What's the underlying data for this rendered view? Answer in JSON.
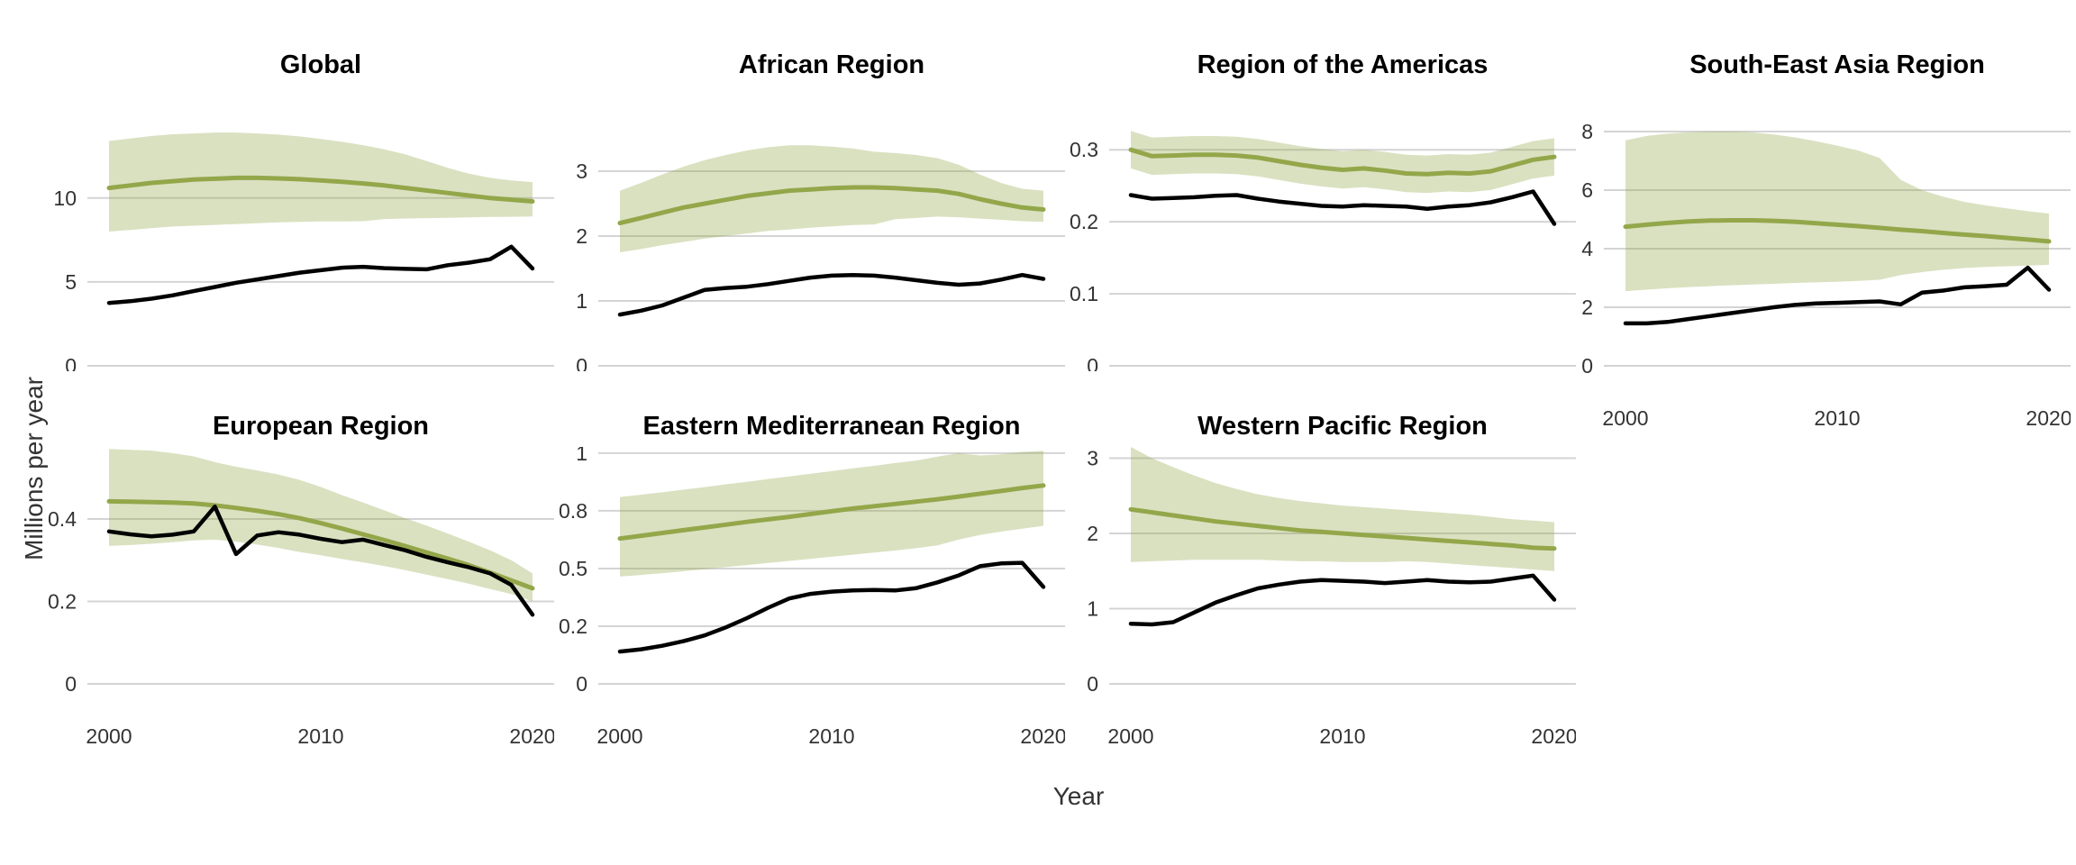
{
  "chart_data": {
    "type": "line",
    "title": "",
    "xlabel": "Year",
    "ylabel": "Millions per year",
    "layout": "7 faceted panels, 4 columns x 2 rows, shared x axis, free y scales, horizontal gridlines only, no legend",
    "x": [
      2000,
      2001,
      2002,
      2003,
      2004,
      2005,
      2006,
      2007,
      2008,
      2009,
      2010,
      2011,
      2012,
      2013,
      2014,
      2015,
      2016,
      2017,
      2018,
      2019,
      2020
    ],
    "x_range": [
      1999,
      2021
    ],
    "x_ticks": [
      {
        "value": 2000,
        "label": "2000"
      },
      {
        "value": 2010,
        "label": "2010"
      },
      {
        "value": 2020,
        "label": "2020"
      }
    ],
    "series_meaning": {
      "estimate": "green line with shaded uncertainty ribbon (upper/lower bounds)",
      "reported": "black line"
    },
    "panels": [
      {
        "title": "Global",
        "y_max": 16.7,
        "y_ticks": [
          {
            "value": 0,
            "label": "0"
          },
          {
            "value": 5,
            "label": "5"
          },
          {
            "value": 10,
            "label": "10"
          }
        ],
        "series": {
          "estimate": [
            10.6,
            10.75,
            10.9,
            11.0,
            11.1,
            11.15,
            11.2,
            11.2,
            11.17,
            11.12,
            11.05,
            10.97,
            10.87,
            10.75,
            10.6,
            10.45,
            10.3,
            10.15,
            10.0,
            9.9,
            9.8
          ],
          "upper": [
            13.4,
            13.55,
            13.7,
            13.8,
            13.85,
            13.9,
            13.9,
            13.85,
            13.78,
            13.67,
            13.52,
            13.35,
            13.15,
            12.9,
            12.6,
            12.2,
            11.8,
            11.45,
            11.2,
            11.05,
            10.95
          ],
          "lower": [
            8.0,
            8.1,
            8.2,
            8.3,
            8.35,
            8.4,
            8.45,
            8.5,
            8.55,
            8.58,
            8.6,
            8.6,
            8.62,
            8.75,
            8.78,
            8.8,
            8.82,
            8.85,
            8.87,
            8.88,
            8.9
          ],
          "reported": [
            3.75,
            3.85,
            4.0,
            4.2,
            4.45,
            4.7,
            4.95,
            5.15,
            5.35,
            5.55,
            5.7,
            5.85,
            5.9,
            5.82,
            5.78,
            5.75,
            6.0,
            6.15,
            6.35,
            7.1,
            5.8
          ]
        }
      },
      {
        "title": "African Region",
        "y_max": 4.32,
        "y_ticks": [
          {
            "value": 0,
            "label": "0"
          },
          {
            "value": 1,
            "label": "1"
          },
          {
            "value": 2,
            "label": "2"
          },
          {
            "value": 3,
            "label": "3"
          }
        ],
        "series": {
          "estimate": [
            2.2,
            2.28,
            2.36,
            2.44,
            2.5,
            2.56,
            2.62,
            2.66,
            2.7,
            2.72,
            2.74,
            2.75,
            2.75,
            2.74,
            2.72,
            2.7,
            2.65,
            2.57,
            2.5,
            2.44,
            2.41
          ],
          "upper": [
            2.7,
            2.82,
            2.95,
            3.07,
            3.17,
            3.25,
            3.32,
            3.37,
            3.4,
            3.4,
            3.38,
            3.35,
            3.3,
            3.28,
            3.25,
            3.2,
            3.1,
            2.95,
            2.82,
            2.73,
            2.7
          ],
          "lower": [
            1.75,
            1.8,
            1.86,
            1.91,
            1.96,
            2.0,
            2.04,
            2.08,
            2.1,
            2.13,
            2.15,
            2.17,
            2.18,
            2.26,
            2.28,
            2.3,
            2.29,
            2.27,
            2.25,
            2.23,
            2.22
          ],
          "reported": [
            0.79,
            0.85,
            0.93,
            1.05,
            1.17,
            1.2,
            1.22,
            1.26,
            1.31,
            1.36,
            1.39,
            1.4,
            1.39,
            1.36,
            1.32,
            1.28,
            1.25,
            1.27,
            1.33,
            1.4,
            1.34
          ]
        }
      },
      {
        "title": "Region of the Americas",
        "y_max": 0.389,
        "y_ticks": [
          {
            "value": 0,
            "label": "0"
          },
          {
            "value": 0.1,
            "label": "0.1"
          },
          {
            "value": 0.2,
            "label": "0.2"
          },
          {
            "value": 0.3,
            "label": "0.3"
          }
        ],
        "series": {
          "estimate": [
            0.3,
            0.291,
            0.292,
            0.293,
            0.293,
            0.292,
            0.289,
            0.284,
            0.279,
            0.275,
            0.272,
            0.274,
            0.271,
            0.267,
            0.266,
            0.268,
            0.267,
            0.27,
            0.278,
            0.286,
            0.29
          ],
          "upper": [
            0.326,
            0.317,
            0.318,
            0.319,
            0.319,
            0.318,
            0.315,
            0.31,
            0.305,
            0.301,
            0.298,
            0.3,
            0.297,
            0.293,
            0.292,
            0.294,
            0.293,
            0.296,
            0.304,
            0.312,
            0.316
          ],
          "lower": [
            0.274,
            0.265,
            0.266,
            0.267,
            0.267,
            0.266,
            0.263,
            0.258,
            0.253,
            0.249,
            0.246,
            0.248,
            0.245,
            0.241,
            0.24,
            0.242,
            0.241,
            0.244,
            0.252,
            0.26,
            0.264
          ],
          "reported": [
            0.237,
            0.232,
            0.233,
            0.234,
            0.236,
            0.237,
            0.232,
            0.228,
            0.225,
            0.222,
            0.221,
            0.223,
            0.222,
            0.221,
            0.218,
            0.221,
            0.223,
            0.227,
            0.234,
            0.242,
            0.197
          ]
        }
      },
      {
        "title": "South-East Asia Region",
        "y_max": 9.57,
        "y_ticks": [
          {
            "value": 0,
            "label": "0"
          },
          {
            "value": 2,
            "label": "2"
          },
          {
            "value": 4,
            "label": "4"
          },
          {
            "value": 6,
            "label": "6"
          },
          {
            "value": 8,
            "label": "8"
          }
        ],
        "series": {
          "estimate": [
            4.75,
            4.82,
            4.88,
            4.93,
            4.96,
            4.97,
            4.97,
            4.95,
            4.92,
            4.87,
            4.82,
            4.77,
            4.71,
            4.65,
            4.6,
            4.54,
            4.48,
            4.43,
            4.37,
            4.31,
            4.25
          ],
          "upper": [
            7.7,
            7.85,
            7.93,
            7.98,
            8.0,
            8.0,
            7.97,
            7.9,
            7.8,
            7.67,
            7.52,
            7.35,
            7.1,
            6.35,
            6.0,
            5.78,
            5.6,
            5.48,
            5.38,
            5.28,
            5.2
          ],
          "lower": [
            2.55,
            2.6,
            2.65,
            2.69,
            2.72,
            2.75,
            2.78,
            2.8,
            2.83,
            2.85,
            2.87,
            2.9,
            2.94,
            3.1,
            3.2,
            3.28,
            3.34,
            3.38,
            3.4,
            3.42,
            3.45
          ],
          "reported": [
            1.45,
            1.45,
            1.5,
            1.6,
            1.7,
            1.8,
            1.9,
            2.0,
            2.08,
            2.13,
            2.15,
            2.18,
            2.2,
            2.1,
            2.5,
            2.57,
            2.68,
            2.72,
            2.77,
            3.35,
            2.6
          ]
        }
      },
      {
        "title": "European Region",
        "y_max": 0.575,
        "y_ticks": [
          {
            "value": 0,
            "label": "0"
          },
          {
            "value": 0.2,
            "label": "0.2"
          },
          {
            "value": 0.4,
            "label": "0.4"
          }
        ],
        "series": {
          "estimate": [
            0.443,
            0.442,
            0.441,
            0.44,
            0.438,
            0.433,
            0.427,
            0.42,
            0.412,
            0.402,
            0.39,
            0.377,
            0.363,
            0.349,
            0.334,
            0.319,
            0.304,
            0.288,
            0.27,
            0.251,
            0.232
          ],
          "upper": [
            0.57,
            0.568,
            0.566,
            0.56,
            0.552,
            0.538,
            0.527,
            0.518,
            0.508,
            0.495,
            0.478,
            0.458,
            0.44,
            0.421,
            0.402,
            0.384,
            0.365,
            0.345,
            0.324,
            0.3,
            0.268
          ],
          "lower": [
            0.335,
            0.337,
            0.34,
            0.344,
            0.348,
            0.35,
            0.345,
            0.338,
            0.33,
            0.32,
            0.312,
            0.303,
            0.295,
            0.286,
            0.276,
            0.265,
            0.254,
            0.243,
            0.23,
            0.218,
            0.2
          ],
          "reported": [
            0.37,
            0.363,
            0.358,
            0.362,
            0.37,
            0.43,
            0.315,
            0.36,
            0.368,
            0.362,
            0.352,
            0.344,
            0.35,
            0.337,
            0.324,
            0.308,
            0.295,
            0.283,
            0.268,
            0.24,
            0.168
          ]
        }
      },
      {
        "title": "Eastern Mediterranean Region",
        "y_max": 1.027,
        "y_ticks": [
          {
            "value": 0,
            "label": "0"
          },
          {
            "value": 0.25,
            "label": "0.2"
          },
          {
            "value": 0.5,
            "label": "0.5"
          },
          {
            "value": 0.75,
            "label": "0.8"
          },
          {
            "value": 1,
            "label": "1"
          }
        ],
        "series": {
          "estimate": [
            0.63,
            0.642,
            0.654,
            0.666,
            0.678,
            0.69,
            0.702,
            0.713,
            0.724,
            0.736,
            0.748,
            0.76,
            0.77,
            0.78,
            0.79,
            0.8,
            0.812,
            0.824,
            0.836,
            0.849,
            0.86
          ],
          "upper": [
            0.81,
            0.82,
            0.83,
            0.842,
            0.853,
            0.865,
            0.876,
            0.888,
            0.899,
            0.911,
            0.922,
            0.934,
            0.945,
            0.957,
            0.968,
            0.985,
            1.0,
            0.99,
            0.995,
            1.005,
            1.01
          ],
          "lower": [
            0.465,
            0.472,
            0.48,
            0.488,
            0.497,
            0.506,
            0.515,
            0.524,
            0.533,
            0.542,
            0.551,
            0.56,
            0.569,
            0.578,
            0.588,
            0.6,
            0.625,
            0.645,
            0.66,
            0.673,
            0.685
          ],
          "reported": [
            0.14,
            0.15,
            0.165,
            0.185,
            0.21,
            0.245,
            0.285,
            0.33,
            0.37,
            0.39,
            0.4,
            0.405,
            0.407,
            0.405,
            0.415,
            0.44,
            0.47,
            0.51,
            0.522,
            0.525,
            0.42
          ]
        }
      },
      {
        "title": "Western Pacific Region",
        "y_max": 3.15,
        "y_ticks": [
          {
            "value": 0,
            "label": "0"
          },
          {
            "value": 1,
            "label": "1"
          },
          {
            "value": 2,
            "label": "2"
          },
          {
            "value": 3,
            "label": "3"
          }
        ],
        "series": {
          "estimate": [
            2.32,
            2.28,
            2.24,
            2.2,
            2.16,
            2.13,
            2.1,
            2.07,
            2.04,
            2.02,
            2.0,
            1.98,
            1.96,
            1.94,
            1.92,
            1.9,
            1.88,
            1.86,
            1.84,
            1.81,
            1.8
          ],
          "upper": [
            3.15,
            3.0,
            2.88,
            2.77,
            2.67,
            2.59,
            2.52,
            2.47,
            2.43,
            2.4,
            2.37,
            2.35,
            2.33,
            2.31,
            2.29,
            2.27,
            2.25,
            2.22,
            2.19,
            2.17,
            2.15
          ],
          "lower": [
            1.62,
            1.63,
            1.64,
            1.65,
            1.65,
            1.65,
            1.65,
            1.64,
            1.63,
            1.63,
            1.62,
            1.62,
            1.62,
            1.63,
            1.62,
            1.6,
            1.58,
            1.56,
            1.54,
            1.52,
            1.5
          ],
          "reported": [
            0.8,
            0.79,
            0.82,
            0.95,
            1.08,
            1.18,
            1.27,
            1.32,
            1.36,
            1.38,
            1.37,
            1.36,
            1.34,
            1.36,
            1.38,
            1.36,
            1.35,
            1.36,
            1.4,
            1.44,
            1.12
          ]
        }
      }
    ],
    "colors": {
      "estimate_line": "#93a74a",
      "ribbon_fill": "rgba(147,167,74,0.34)",
      "reported_line": "#000000",
      "gridline": "#d4d4d4",
      "tick_text": "#333333",
      "axis_title_text": "#333333",
      "panel_title_text": "#000000",
      "background": "#ffffff"
    }
  }
}
